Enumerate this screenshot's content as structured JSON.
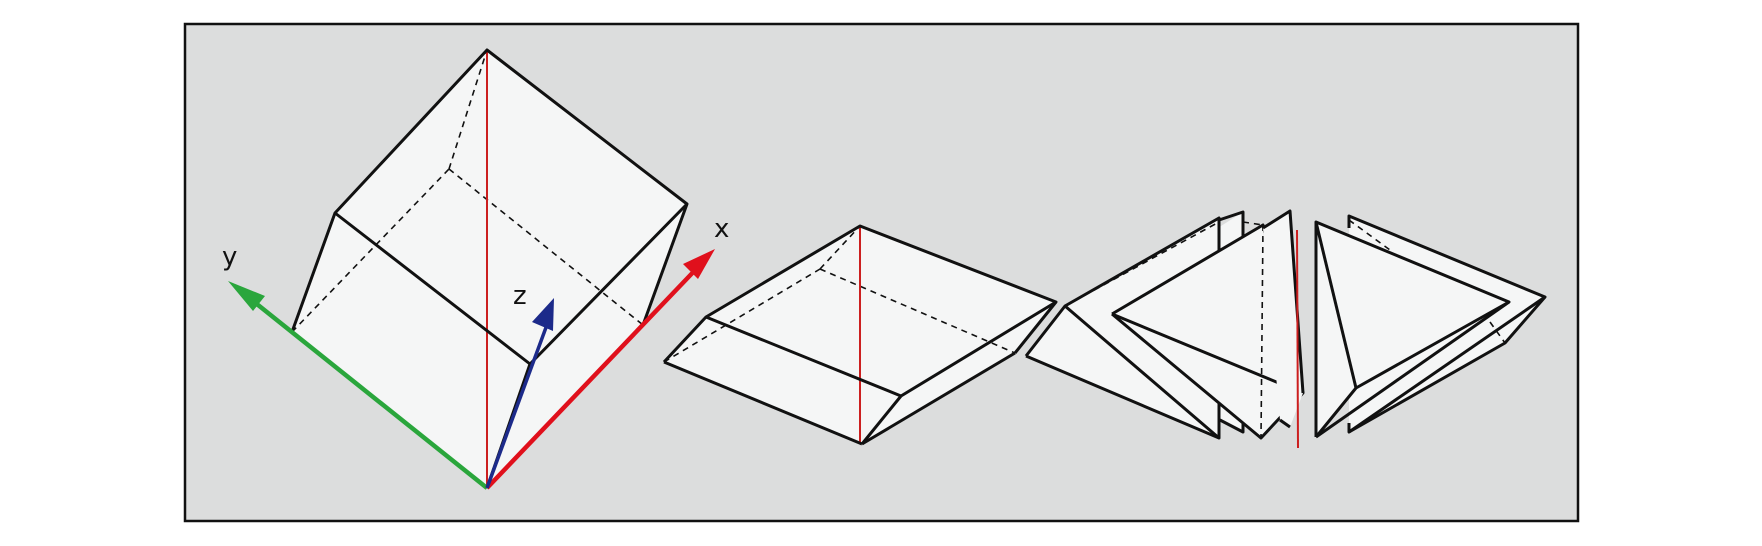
{
  "colors": {
    "panel_fill": "#dcdddd",
    "face_fill": "#f5f6f6",
    "edge": "#111111",
    "hidden_edge": "#111111",
    "vertical_line": "#cc1f1f",
    "x_axis": "#e0101c",
    "y_axis": "#2aa63c",
    "z_axis": "#1c2a8a"
  },
  "axes": {
    "x_label": "x",
    "y_label": "y",
    "z_label": "z"
  }
}
